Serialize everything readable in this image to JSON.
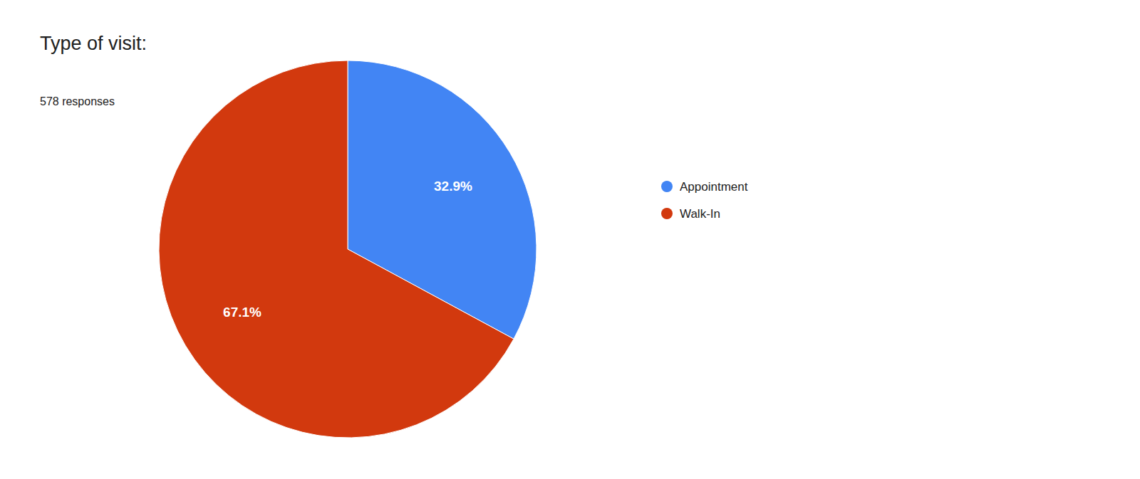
{
  "chart_data": {
    "type": "pie",
    "title": "Type of visit:",
    "subtitle": "578 responses",
    "categories": [
      "Appointment",
      "Walk-In"
    ],
    "values": [
      32.9,
      67.1
    ],
    "value_labels": [
      "32.9%",
      "67.1%"
    ],
    "colors": [
      "#4285F4",
      "#D2390E"
    ],
    "data_labels": true,
    "legend": "right"
  }
}
